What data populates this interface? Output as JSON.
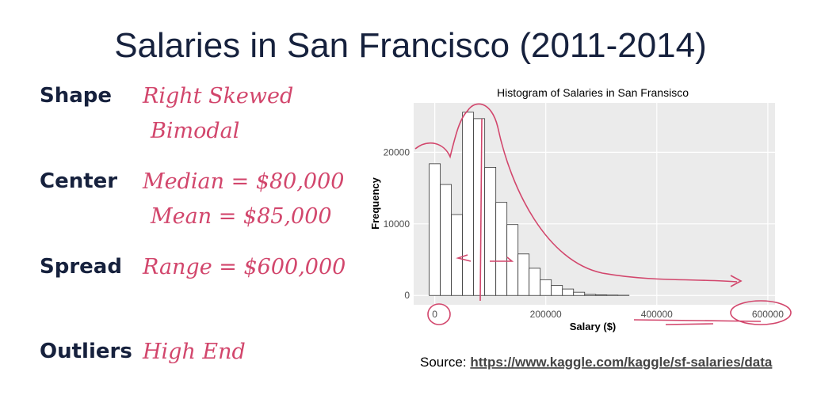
{
  "slide": {
    "title": "Salaries in San Francisco (2011-2014)",
    "sections": [
      {
        "label": "Shape",
        "notes": [
          "Right Skewed",
          "Bimodal"
        ]
      },
      {
        "label": "Center",
        "notes": [
          "Median = $80,000",
          "Mean = $85,000"
        ]
      },
      {
        "label": "Spread",
        "notes": [
          "Range = $600,000"
        ]
      },
      {
        "label": "Outliers",
        "notes": [
          "High End"
        ]
      }
    ],
    "source_label": "Source:",
    "source_url": "https://www.kaggle.com/kaggle/sf-salaries/data"
  },
  "chart_data": {
    "type": "histogram",
    "title": "Histogram of Salaries in San Fransisco",
    "x_label": "Salary ($)",
    "y_label": "Frequency",
    "bins": [
      -10000,
      10000,
      30000,
      50000,
      70000,
      90000,
      110000,
      130000,
      150000,
      170000,
      190000,
      210000,
      230000,
      250000,
      270000,
      290000,
      310000,
      330000,
      350000
    ],
    "values": [
      18400,
      15500,
      11300,
      25600,
      24700,
      17900,
      13000,
      9900,
      5800,
      3800,
      2200,
      1400,
      900,
      450,
      150,
      80,
      50,
      30
    ],
    "color": "#ffffff",
    "edge_color": "#333333",
    "xlim": [
      -38000,
      613000
    ],
    "ylim": [
      -1300,
      26900
    ],
    "xticks": [
      0,
      200000,
      400000,
      600000
    ],
    "yticks": [
      0,
      10000,
      20000
    ],
    "grid": true
  }
}
